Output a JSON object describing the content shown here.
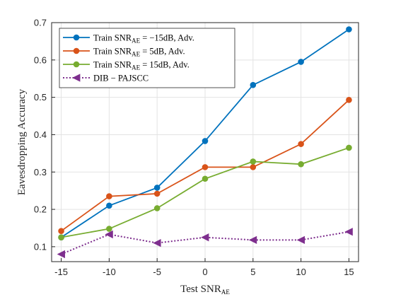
{
  "chart_data": {
    "type": "line",
    "x": [
      -15,
      -10,
      -5,
      0,
      5,
      10,
      15
    ],
    "xlabel": {
      "main": "Test SNR",
      "sub": "AE"
    },
    "ylabel": "Eavesdropping Accuracy",
    "xlim": [
      -16,
      16
    ],
    "ylim": [
      0.06,
      0.7
    ],
    "xticks": [
      -15,
      -10,
      -5,
      0,
      5,
      10,
      15
    ],
    "xtick_labels": [
      "-15",
      "-10",
      "-5",
      "0",
      "5",
      "10",
      "15"
    ],
    "yticks": [
      0.1,
      0.2,
      0.3,
      0.4,
      0.5,
      0.6,
      0.7
    ],
    "ytick_labels": [
      "0.1",
      "0.2",
      "0.3",
      "0.4",
      "0.5",
      "0.6",
      "0.7"
    ],
    "grid": true,
    "legend_position": "top-left",
    "series": [
      {
        "name": "Train SNR_AE = −15dB, Adv.",
        "legend": {
          "pre": "Train SNR",
          "sub": "AE",
          "post": " = −15dB,  Adv."
        },
        "values": [
          0.125,
          0.21,
          0.258,
          0.383,
          0.533,
          0.595,
          0.682
        ],
        "color": "#0072BD",
        "marker": "circle",
        "line": "solid"
      },
      {
        "name": "Train SNR_AE = 5dB, Adv.",
        "legend": {
          "pre": "Train SNR",
          "sub": "AE",
          "post": " = 5dB,  Adv."
        },
        "values": [
          0.142,
          0.235,
          0.242,
          0.313,
          0.313,
          0.375,
          0.493
        ],
        "color": "#D95319",
        "marker": "circle",
        "line": "solid"
      },
      {
        "name": "Train SNR_AE = 15dB, Adv.",
        "legend": {
          "pre": "Train SNR",
          "sub": "AE",
          "post": " = 15dB,  Adv."
        },
        "values": [
          0.125,
          0.148,
          0.203,
          0.282,
          0.328,
          0.321,
          0.365
        ],
        "color": "#77AC30",
        "marker": "circle",
        "line": "solid"
      },
      {
        "name": "DIB − PAJSCC",
        "legend": {
          "pre": "DIB − PAJSCC",
          "sub": "",
          "post": ""
        },
        "values": [
          0.08,
          0.133,
          0.11,
          0.125,
          0.118,
          0.118,
          0.14
        ],
        "color": "#7E2F8E",
        "marker": "triangle-left",
        "line": "dotted"
      }
    ]
  }
}
